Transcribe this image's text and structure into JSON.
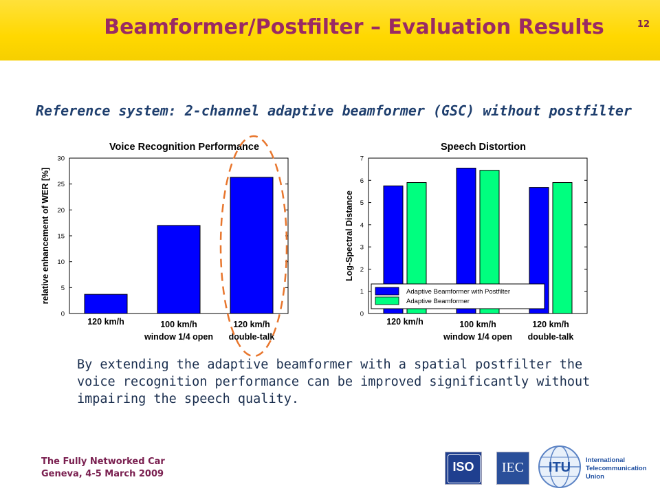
{
  "header": {
    "title": "Beamformer/Postfilter – Evaluation Results",
    "page_number": "12"
  },
  "subtitle": "Reference system: 2-channel adaptive beamformer (GSC) without postfilter",
  "body_text": "By extending the adaptive beamformer with a spatial postfilter the voice recognition performance can be improved significantly without impairing the speech quality.",
  "footer": {
    "line1": "The Fully Networked Car",
    "line2": "Geneva, 4-5 March 2009"
  },
  "logos": {
    "iso": "ISO",
    "iec": "IEC",
    "itu": "ITU",
    "itu_name": [
      "International",
      "Telecommunication",
      "Union"
    ]
  },
  "colors": {
    "postfilter": "#0000ff",
    "beamformer": "#00ff7f",
    "highlight": "#e8762d",
    "title": "#9a2a63",
    "header": "#ffd800"
  },
  "chart_data": [
    {
      "type": "bar",
      "title": "Voice Recognition Performance",
      "ylabel": "relative enhancement of WER [%]",
      "ylim": [
        0,
        30
      ],
      "yticks": [
        0,
        5,
        10,
        15,
        20,
        25,
        30
      ],
      "categories": [
        [
          "120 km/h"
        ],
        [
          "100 km/h",
          "window 1/4 open"
        ],
        [
          "120 km/h",
          "double-talk"
        ]
      ],
      "values": [
        3.7,
        17.0,
        26.3
      ],
      "highlight": "dashed ellipse around 120 km/h double-talk"
    },
    {
      "type": "bar",
      "title": "Speech Distortion",
      "ylabel": "Log-Spectral Distance",
      "ylim": [
        0,
        7
      ],
      "yticks": [
        0,
        1,
        2,
        3,
        4,
        5,
        6,
        7
      ],
      "categories": [
        [
          "120 km/h"
        ],
        [
          "100 km/h",
          "window 1/4 open"
        ],
        [
          "120 km/h",
          "double-talk"
        ]
      ],
      "series": [
        {
          "name": "Adaptive Beamformer with Postfilter",
          "values": [
            5.75,
            6.55,
            5.68
          ]
        },
        {
          "name": "Adaptive Beamformer",
          "values": [
            5.9,
            6.45,
            5.9
          ]
        }
      ],
      "legend_position": "bottom"
    }
  ]
}
